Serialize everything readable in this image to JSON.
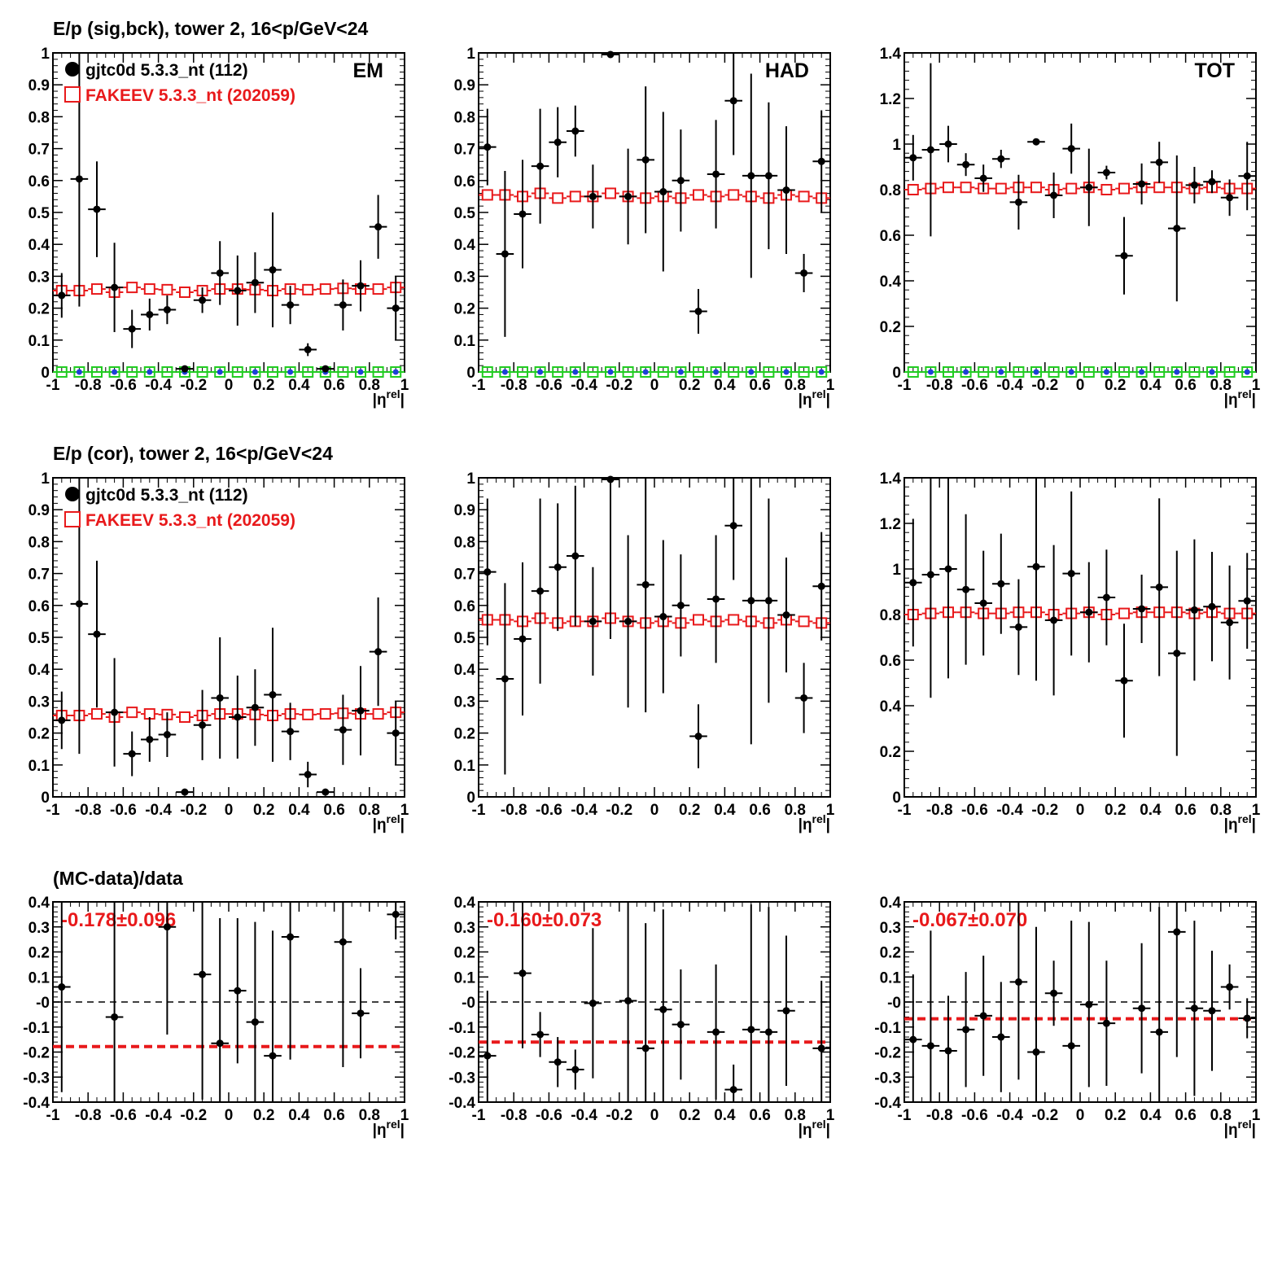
{
  "colors": {
    "data": "#000000",
    "mc": "#e8191b",
    "green": "#22cc22",
    "blue": "#1f3fd9",
    "ratio_line": "#e8191b"
  },
  "row_titles": {
    "row1": "E/p (sig,bck), tower 2, 16<p/GeV<24",
    "row2": "E/p (cor), tower 2, 16<p/GeV<24",
    "row3": "(MC-data)/data"
  },
  "legend": {
    "data_label": "gjtc0d 5.3.3_nt (112)",
    "mc_label": "FAKEEV 5.3.3_nt (202059)"
  },
  "panel_labels": {
    "em": "EM",
    "had": "HAD",
    "tot": "TOT"
  },
  "xaxis_label": {
    "base": "|η",
    "sup": "rel",
    "end": "|"
  },
  "chart_data": [
    {
      "id": "r1c1",
      "type": "scatter",
      "ylim": [
        0,
        1
      ],
      "xlim": [
        -1,
        1
      ],
      "yticks": [
        "0",
        "0.1",
        "0.2",
        "0.3",
        "0.4",
        "0.5",
        "0.6",
        "0.7",
        "0.8",
        "0.9",
        "1"
      ],
      "xticks": [
        "-1",
        "-0.8",
        "-0.6",
        "-0.4",
        "-0.2",
        "0",
        "0.2",
        "0.4",
        "0.6",
        "0.8",
        "1"
      ],
      "series": [
        {
          "name": "gjtc0d 5.3.3_nt (112)",
          "x": [
            -0.95,
            -0.85,
            -0.75,
            -0.65,
            -0.55,
            -0.45,
            -0.35,
            -0.25,
            -0.15,
            -0.05,
            0.05,
            0.15,
            0.25,
            0.35,
            0.45,
            0.55,
            0.65,
            0.75,
            0.85,
            0.95
          ],
          "y": [
            0.24,
            0.605,
            0.51,
            0.265,
            0.135,
            0.18,
            0.195,
            0.01,
            0.225,
            0.31,
            0.255,
            0.28,
            0.32,
            0.21,
            0.07,
            0.01,
            0.21,
            0.27,
            0.455,
            0.2
          ],
          "err": [
            0.07,
            0.4,
            0.15,
            0.14,
            0.06,
            0.05,
            0.045,
            0.01,
            0.04,
            0.1,
            0.11,
            0.095,
            0.18,
            0.06,
            0.02,
            0.005,
            0.08,
            0.08,
            0.1,
            0.1
          ]
        },
        {
          "name": "FAKEEV 5.3.3_nt (202059)",
          "y": [
            0.255,
            0.255,
            0.26,
            0.25,
            0.265,
            0.26,
            0.258,
            0.25,
            0.255,
            0.26,
            0.26,
            0.258,
            0.255,
            0.26,
            0.258,
            0.26,
            0.262,
            0.26,
            0.26,
            0.265
          ]
        },
        {
          "y": [
            0,
            0,
            0,
            0,
            0,
            0,
            0,
            0,
            0,
            0,
            0,
            0,
            0,
            0,
            0,
            0,
            0,
            0,
            0,
            0
          ]
        }
      ]
    },
    {
      "id": "r1c2",
      "type": "scatter",
      "ylim": [
        0,
        1
      ],
      "xlim": [
        -1,
        1
      ],
      "yticks": [
        "0",
        "0.1",
        "0.2",
        "0.3",
        "0.4",
        "0.5",
        "0.6",
        "0.7",
        "0.8",
        "0.9",
        "1"
      ],
      "xticks": [
        "-1",
        "-0.8",
        "-0.6",
        "-0.4",
        "-0.2",
        "0",
        "0.2",
        "0.4",
        "0.6",
        "0.8",
        "1"
      ],
      "series": [
        {
          "name": "gjtc0d 5.3.3_nt (112)",
          "x": [
            -0.95,
            -0.85,
            -0.75,
            -0.65,
            -0.55,
            -0.45,
            -0.35,
            -0.25,
            -0.15,
            -0.05,
            0.05,
            0.15,
            0.25,
            0.35,
            0.45,
            0.55,
            0.65,
            0.75,
            0.85,
            0.95
          ],
          "y": [
            0.705,
            0.37,
            0.495,
            0.645,
            0.72,
            0.755,
            0.55,
            0.995,
            0.55,
            0.665,
            0.565,
            0.6,
            0.19,
            0.62,
            0.85,
            0.615,
            0.615,
            0.57,
            0.31,
            0.66
          ],
          "err": [
            0.12,
            0.26,
            0.17,
            0.18,
            0.11,
            0.08,
            0.1,
            0.01,
            0.15,
            0.23,
            0.25,
            0.16,
            0.07,
            0.17,
            0.17,
            0.32,
            0.23,
            0.2,
            0.06,
            0.16
          ]
        },
        {
          "name": "FAKEEV 5.3.3_nt (202059)",
          "y": [
            0.555,
            0.555,
            0.55,
            0.56,
            0.545,
            0.55,
            0.55,
            0.56,
            0.55,
            0.545,
            0.55,
            0.545,
            0.555,
            0.55,
            0.555,
            0.55,
            0.545,
            0.555,
            0.55,
            0.545
          ]
        },
        {
          "y": [
            0,
            0,
            0,
            0,
            0,
            0,
            0,
            0,
            0,
            0,
            0,
            0,
            0,
            0,
            0,
            0,
            0,
            0,
            0,
            0
          ]
        }
      ]
    },
    {
      "id": "r1c3",
      "type": "scatter",
      "ylim": [
        0,
        1.4
      ],
      "xlim": [
        -1,
        1
      ],
      "yticks": [
        "0",
        "0.2",
        "0.4",
        "0.6",
        "0.8",
        "1",
        "1.2",
        "1.4"
      ],
      "xticks": [
        "-1",
        "-0.8",
        "-0.6",
        "-0.4",
        "-0.2",
        "0",
        "0.2",
        "0.4",
        "0.6",
        "0.8",
        "1"
      ],
      "series": [
        {
          "name": "gjtc0d 5.3.3_nt (112)",
          "x": [
            -0.95,
            -0.85,
            -0.75,
            -0.65,
            -0.55,
            -0.45,
            -0.35,
            -0.25,
            -0.15,
            -0.05,
            0.05,
            0.15,
            0.25,
            0.35,
            0.45,
            0.55,
            0.65,
            0.75,
            0.85,
            0.95
          ],
          "y": [
            0.94,
            0.975,
            1.0,
            0.91,
            0.85,
            0.935,
            0.745,
            1.01,
            0.775,
            0.98,
            0.81,
            0.875,
            0.51,
            0.825,
            0.92,
            0.63,
            0.82,
            0.835,
            0.765,
            0.86
          ],
          "err": [
            0.1,
            0.38,
            0.08,
            0.05,
            0.06,
            0.04,
            0.12,
            0.01,
            0.1,
            0.11,
            0.17,
            0.03,
            0.17,
            0.09,
            0.09,
            0.32,
            0.08,
            0.05,
            0.08,
            0.15
          ]
        },
        {
          "name": "FAKEEV 5.3.3_nt (202059)",
          "y": [
            0.8,
            0.805,
            0.81,
            0.81,
            0.805,
            0.805,
            0.81,
            0.81,
            0.8,
            0.805,
            0.81,
            0.8,
            0.805,
            0.81,
            0.81,
            0.81,
            0.805,
            0.81,
            0.805,
            0.805
          ]
        },
        {
          "y": [
            0,
            0,
            0,
            0,
            0,
            0,
            0,
            0,
            0,
            0,
            0,
            0,
            0,
            0,
            0,
            0,
            0,
            0,
            0,
            0
          ]
        }
      ]
    },
    {
      "id": "r2c1",
      "type": "scatter",
      "ylim": [
        0,
        1
      ],
      "xlim": [
        -1,
        1
      ],
      "yticks": [
        "0",
        "0.1",
        "0.2",
        "0.3",
        "0.4",
        "0.5",
        "0.6",
        "0.7",
        "0.8",
        "0.9",
        "1"
      ],
      "xticks": [
        "-1",
        "-0.8",
        "-0.6",
        "-0.4",
        "-0.2",
        "0",
        "0.2",
        "0.4",
        "0.6",
        "0.8",
        "1"
      ],
      "series": [
        {
          "name": "gjtc0d 5.3.3_nt (112)",
          "x": [
            -0.95,
            -0.85,
            -0.75,
            -0.65,
            -0.55,
            -0.45,
            -0.35,
            -0.25,
            -0.15,
            -0.05,
            0.05,
            0.15,
            0.25,
            0.35,
            0.45,
            0.55,
            0.65,
            0.75,
            0.85,
            0.95
          ],
          "y": [
            0.24,
            0.605,
            0.51,
            0.265,
            0.135,
            0.18,
            0.195,
            0.015,
            0.225,
            0.31,
            0.25,
            0.28,
            0.32,
            0.205,
            0.07,
            0.015,
            0.21,
            0.27,
            0.455,
            0.2
          ],
          "err": [
            0.09,
            0.47,
            0.23,
            0.17,
            0.07,
            0.07,
            0.07,
            0.01,
            0.11,
            0.19,
            0.13,
            0.12,
            0.21,
            0.09,
            0.04,
            0.005,
            0.11,
            0.14,
            0.17,
            0.1
          ]
        },
        {
          "name": "FAKEEV 5.3.3_nt (202059)",
          "y": [
            0.255,
            0.255,
            0.26,
            0.25,
            0.265,
            0.26,
            0.258,
            0.25,
            0.255,
            0.26,
            0.26,
            0.258,
            0.255,
            0.26,
            0.258,
            0.26,
            0.262,
            0.26,
            0.26,
            0.265
          ]
        }
      ]
    },
    {
      "id": "r2c2",
      "type": "scatter",
      "ylim": [
        0,
        1
      ],
      "xlim": [
        -1,
        1
      ],
      "yticks": [
        "0",
        "0.1",
        "0.2",
        "0.3",
        "0.4",
        "0.5",
        "0.6",
        "0.7",
        "0.8",
        "0.9",
        "1"
      ],
      "xticks": [
        "-1",
        "-0.8",
        "-0.6",
        "-0.4",
        "-0.2",
        "0",
        "0.2",
        "0.4",
        "0.6",
        "0.8",
        "1"
      ],
      "series": [
        {
          "name": "gjtc0d 5.3.3_nt (112)",
          "x": [
            -0.95,
            -0.85,
            -0.75,
            -0.65,
            -0.55,
            -0.45,
            -0.35,
            -0.25,
            -0.15,
            -0.05,
            0.05,
            0.15,
            0.25,
            0.35,
            0.45,
            0.55,
            0.65,
            0.75,
            0.85,
            0.95
          ],
          "y": [
            0.705,
            0.37,
            0.495,
            0.645,
            0.72,
            0.755,
            0.55,
            0.995,
            0.55,
            0.665,
            0.565,
            0.6,
            0.19,
            0.62,
            0.85,
            0.615,
            0.615,
            0.57,
            0.31,
            0.66
          ],
          "err": [
            0.23,
            0.3,
            0.24,
            0.29,
            0.2,
            0.22,
            0.17,
            0.5,
            0.27,
            0.4,
            0.24,
            0.16,
            0.1,
            0.2,
            0.17,
            0.45,
            0.32,
            0.18,
            0.11,
            0.17
          ]
        },
        {
          "name": "FAKEEV 5.3.3_nt (202059)",
          "y": [
            0.555,
            0.555,
            0.55,
            0.56,
            0.545,
            0.55,
            0.55,
            0.56,
            0.55,
            0.545,
            0.55,
            0.545,
            0.555,
            0.55,
            0.555,
            0.55,
            0.545,
            0.555,
            0.55,
            0.545
          ]
        }
      ]
    },
    {
      "id": "r2c3",
      "type": "scatter",
      "ylim": [
        0,
        1.4
      ],
      "xlim": [
        -1,
        1
      ],
      "yticks": [
        "0",
        "0.2",
        "0.4",
        "0.6",
        "0.8",
        "1",
        "1.2",
        "1.4"
      ],
      "xticks": [
        "-1",
        "-0.8",
        "-0.6",
        "-0.4",
        "-0.2",
        "0",
        "0.2",
        "0.4",
        "0.6",
        "0.8",
        "1"
      ],
      "series": [
        {
          "name": "gjtc0d 5.3.3_nt (112)",
          "x": [
            -0.95,
            -0.85,
            -0.75,
            -0.65,
            -0.55,
            -0.45,
            -0.35,
            -0.25,
            -0.15,
            -0.05,
            0.05,
            0.15,
            0.25,
            0.35,
            0.45,
            0.55,
            0.65,
            0.75,
            0.85,
            0.95
          ],
          "y": [
            0.94,
            0.975,
            1.0,
            0.91,
            0.85,
            0.935,
            0.745,
            1.01,
            0.775,
            0.98,
            0.81,
            0.875,
            0.51,
            0.825,
            0.92,
            0.63,
            0.82,
            0.835,
            0.765,
            0.86
          ],
          "err": [
            0.28,
            0.54,
            0.48,
            0.33,
            0.23,
            0.22,
            0.21,
            0.5,
            0.33,
            0.36,
            0.22,
            0.21,
            0.25,
            0.15,
            0.39,
            0.45,
            0.31,
            0.24,
            0.25,
            0.21
          ]
        },
        {
          "name": "FAKEEV 5.3.3_nt (202059)",
          "y": [
            0.8,
            0.805,
            0.81,
            0.81,
            0.805,
            0.805,
            0.81,
            0.81,
            0.8,
            0.805,
            0.81,
            0.8,
            0.805,
            0.81,
            0.81,
            0.81,
            0.805,
            0.81,
            0.805,
            0.805
          ]
        }
      ]
    },
    {
      "id": "r3c1",
      "type": "scatter",
      "ylim": [
        -0.4,
        0.4
      ],
      "xlim": [
        -1,
        1
      ],
      "mean_text": "-0.178±0.096",
      "mean": -0.178,
      "yticks": [
        "-0.4",
        "-0.3",
        "-0.2",
        "-0.1",
        "-0",
        "0.1",
        "0.2",
        "0.3",
        "0.4"
      ],
      "xticks": [
        "-1",
        "-0.8",
        "-0.6",
        "-0.4",
        "-0.2",
        "0",
        "0.2",
        "0.4",
        "0.6",
        "0.8",
        "1"
      ],
      "series": [
        {
          "x": [
            -0.95,
            -0.65,
            -0.35,
            -0.15,
            -0.05,
            0.05,
            0.15,
            0.25,
            0.35,
            0.65,
            0.75,
            0.95
          ],
          "y": [
            0.06,
            -0.06,
            0.3,
            0.11,
            -0.165,
            0.045,
            -0.08,
            -0.215,
            0.26,
            0.24,
            -0.045,
            0.35
          ],
          "err": [
            0.42,
            0.5,
            0.43,
            0.5,
            0.5,
            0.29,
            0.4,
            0.5,
            0.49,
            0.5,
            0.18,
            0.1
          ]
        }
      ]
    },
    {
      "id": "r3c2",
      "type": "scatter",
      "ylim": [
        -0.4,
        0.4
      ],
      "xlim": [
        -1,
        1
      ],
      "mean_text": "-0.160±0.073",
      "mean": -0.16,
      "yticks": [
        "-0.4",
        "-0.3",
        "-0.2",
        "-0.1",
        "-0",
        "0.1",
        "0.2",
        "0.3",
        "0.4"
      ],
      "xticks": [
        "-1",
        "-0.8",
        "-0.6",
        "-0.4",
        "-0.2",
        "0",
        "0.2",
        "0.4",
        "0.6",
        "0.8",
        "1"
      ],
      "series": [
        {
          "x": [
            -0.95,
            -0.75,
            -0.65,
            -0.55,
            -0.45,
            -0.35,
            -0.15,
            -0.05,
            0.05,
            0.15,
            0.35,
            0.45,
            0.55,
            0.65,
            0.75,
            0.95
          ],
          "y": [
            -0.215,
            0.115,
            -0.13,
            -0.24,
            -0.27,
            -0.005,
            0.005,
            -0.185,
            -0.03,
            -0.09,
            -0.12,
            -0.35,
            -0.11,
            -0.12,
            -0.035,
            -0.185
          ],
          "err": [
            0.26,
            0.3,
            0.09,
            0.1,
            0.08,
            0.3,
            0.5,
            0.5,
            0.4,
            0.22,
            0.27,
            0.1,
            0.5,
            0.5,
            0.3,
            0.27
          ]
        }
      ]
    },
    {
      "id": "r3c3",
      "type": "scatter",
      "ylim": [
        -0.4,
        0.4
      ],
      "xlim": [
        -1,
        1
      ],
      "mean_text": "-0.067±0.070",
      "mean": -0.067,
      "yticks": [
        "-0.4",
        "-0.3",
        "-0.2",
        "-0.1",
        "-0",
        "0.1",
        "0.2",
        "0.3",
        "0.4"
      ],
      "xticks": [
        "-1",
        "-0.8",
        "-0.6",
        "-0.4",
        "-0.2",
        "0",
        "0.2",
        "0.4",
        "0.6",
        "0.8",
        "1"
      ],
      "series": [
        {
          "x": [
            -0.95,
            -0.85,
            -0.75,
            -0.65,
            -0.55,
            -0.45,
            -0.35,
            -0.25,
            -0.15,
            -0.05,
            0.05,
            0.15,
            0.35,
            0.45,
            0.55,
            0.65,
            0.75,
            0.85,
            0.95
          ],
          "y": [
            -0.15,
            -0.175,
            -0.195,
            -0.11,
            -0.055,
            -0.14,
            0.08,
            -0.2,
            0.035,
            -0.175,
            -0.01,
            -0.085,
            -0.025,
            -0.12,
            0.28,
            -0.025,
            -0.035,
            0.06,
            -0.065
          ],
          "err": [
            0.26,
            0.46,
            0.22,
            0.23,
            0.24,
            0.22,
            0.39,
            0.5,
            0.13,
            0.5,
            0.33,
            0.25,
            0.26,
            0.5,
            0.5,
            0.35,
            0.24,
            0.09,
            0.08
          ]
        }
      ]
    }
  ]
}
